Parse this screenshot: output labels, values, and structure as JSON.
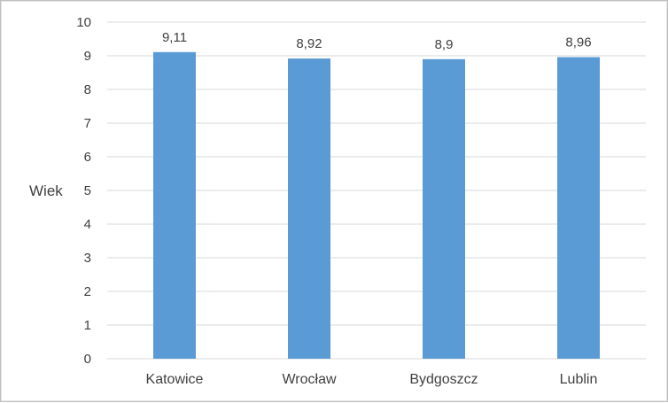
{
  "chart_data": {
    "type": "bar",
    "title": "",
    "xlabel": "",
    "ylabel": "Wiek",
    "categories": [
      "Katowice",
      "Wrocław",
      "Bydgoszcz",
      "Lublin"
    ],
    "values": [
      9.11,
      8.92,
      8.9,
      8.96
    ],
    "data_labels": [
      "9,11",
      "8,92",
      "8,9",
      "8,96"
    ],
    "ylim": [
      0,
      10
    ],
    "yticks": [
      0,
      1,
      2,
      3,
      4,
      5,
      6,
      7,
      8,
      9,
      10
    ],
    "grid": true,
    "bar_color": "#5b9bd5",
    "grid_color": "#d9d9d9"
  }
}
